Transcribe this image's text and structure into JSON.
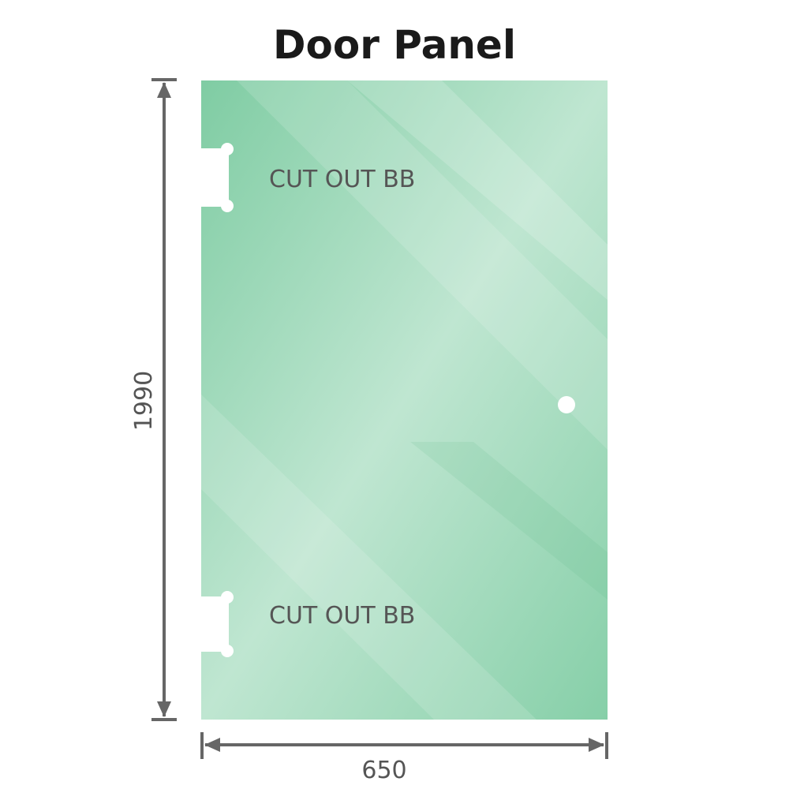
{
  "title": "Door Panel",
  "dimensions": {
    "height": "1990",
    "width": "650"
  },
  "cutouts": [
    {
      "label": "CUT OUT BB"
    },
    {
      "label": "CUT OUT BB"
    }
  ],
  "colors": {
    "glass": "#86cfa8",
    "glass_light": "#c2e8d4",
    "dimension_line": "#666666",
    "text": "#555555"
  }
}
